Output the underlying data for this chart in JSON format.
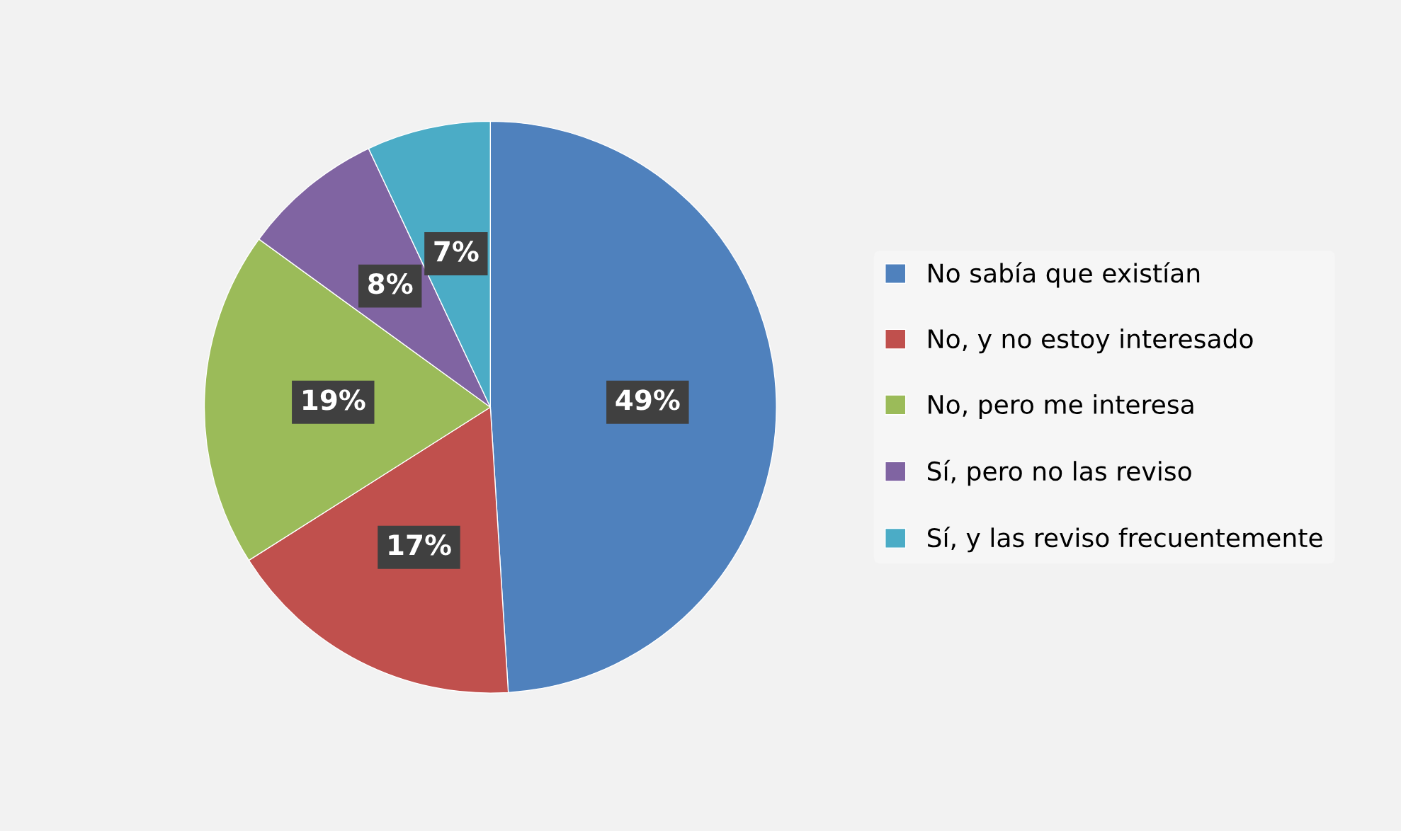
{
  "chart_data": {
    "type": "pie",
    "categories": [
      "No sabía que existían",
      "No, y no estoy interesado",
      "No, pero me interesa",
      "Sí, pero no las reviso",
      "Sí, y las reviso frecuentemente"
    ],
    "values": [
      49,
      17,
      19,
      8,
      7
    ],
    "value_labels": [
      "49%",
      "17%",
      "19%",
      "8%",
      "7%"
    ],
    "colors": [
      "#4f81bd",
      "#c0504d",
      "#9bbb59",
      "#8064a2",
      "#4bacc6"
    ],
    "legend": "right"
  }
}
